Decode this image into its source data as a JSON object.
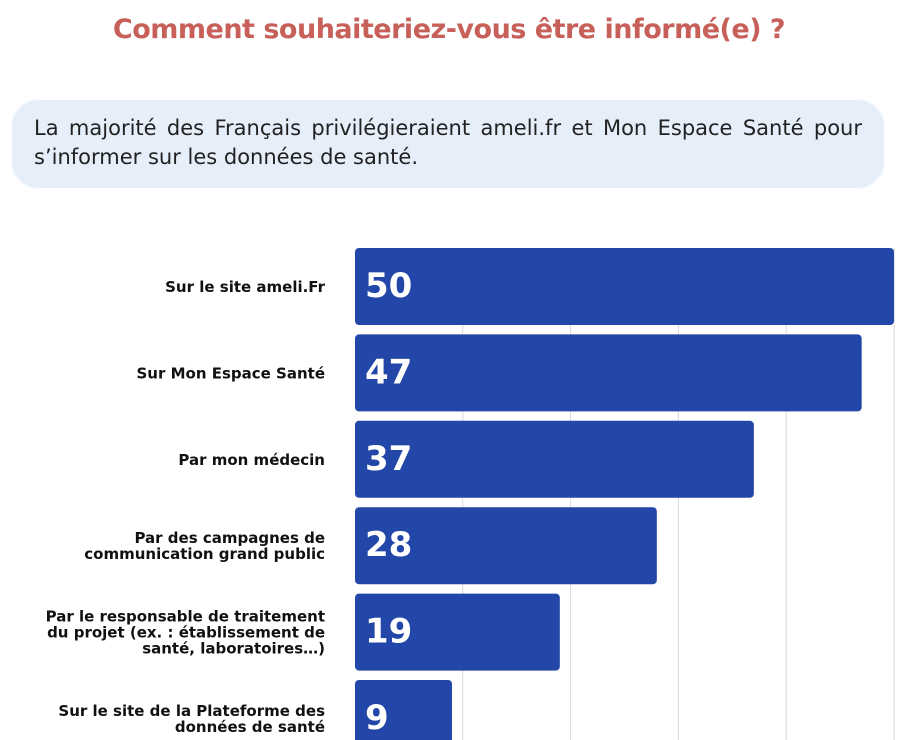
{
  "title": "Comment souhaiteriez-vous être informé(e) ?",
  "callout": {
    "text": "La majorité des Français privilégieraient ameli.fr et Mon Espace Santé pour s’informer sur les données de santé."
  },
  "colors": {
    "title": "#c8605a",
    "callout_bg": "#e6eefa",
    "bar": "#2347a8",
    "bar_label": "#ffffff",
    "category_label": "#111111",
    "grid": "#d9d9d9"
  },
  "chart_data": {
    "type": "bar",
    "orientation": "horizontal",
    "categories": [
      "Sur le site ameli.Fr",
      "Sur Mon Espace Santé",
      "Par mon médecin",
      "Par des campagnes de communication grand public",
      "Par le responsable de traitement du projet (ex. : établissement de santé, laboratoires…)",
      "Sur le site de la Plateforme des données de santé"
    ],
    "category_lines": [
      [
        "Sur le site ameli.Fr"
      ],
      [
        "Sur Mon Espace Santé"
      ],
      [
        "Par mon médecin"
      ],
      [
        "Par des campagnes de",
        "communication grand public"
      ],
      [
        "Par le responsable de traitement",
        "du projet (ex. : établissement de",
        "santé, laboratoires…)"
      ],
      [
        "Sur le site de la Plateforme des",
        "données de santé"
      ]
    ],
    "values": [
      50,
      47,
      37,
      28,
      19,
      9
    ],
    "value_labels": [
      "50",
      "47",
      "37",
      "28",
      "19",
      "9"
    ],
    "xlim": [
      0,
      50
    ],
    "grid": true,
    "title": "",
    "xlabel": "",
    "ylabel": ""
  }
}
